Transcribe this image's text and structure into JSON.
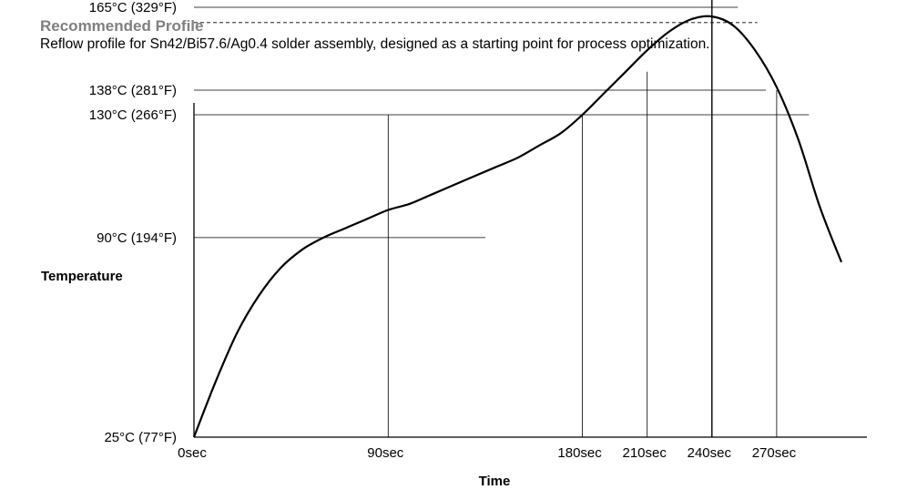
{
  "header": {
    "title": "Recommended Profile",
    "subtitle": "Reflow profile for Sn42/Bi57.6/Ag0.4 solder assembly, designed as a starting point for process optimization."
  },
  "chart_data": {
    "type": "line",
    "xlabel": "Time",
    "ylabel": "Temperature",
    "x_ticks": [
      {
        "value": 0,
        "label": "0sec"
      },
      {
        "value": 90,
        "label": "90sec"
      },
      {
        "value": 180,
        "label": "180sec"
      },
      {
        "value": 210,
        "label": "210sec"
      },
      {
        "value": 240,
        "label": "240sec"
      },
      {
        "value": 270,
        "label": "270sec"
      }
    ],
    "y_ticks": [
      {
        "value": 25,
        "label": "25°C (77°F)"
      },
      {
        "value": 90,
        "label": "90°C (194°F)"
      },
      {
        "value": 130,
        "label": "130°C (266°F)"
      },
      {
        "value": 138,
        "label": "138°C (281°F)"
      },
      {
        "value": 165,
        "label": "165°C (329°F)"
      }
    ],
    "dashed_line_y": 160,
    "series": [
      {
        "points": [
          [
            0,
            25
          ],
          [
            10,
            43
          ],
          [
            20,
            59
          ],
          [
            30,
            71
          ],
          [
            40,
            80
          ],
          [
            50,
            86
          ],
          [
            60,
            90
          ],
          [
            70,
            93
          ],
          [
            80,
            96
          ],
          [
            90,
            99
          ],
          [
            100,
            101
          ],
          [
            110,
            104
          ],
          [
            120,
            107
          ],
          [
            130,
            110
          ],
          [
            140,
            113
          ],
          [
            150,
            116
          ],
          [
            160,
            120
          ],
          [
            170,
            124
          ],
          [
            180,
            130
          ],
          [
            190,
            137
          ],
          [
            200,
            144
          ],
          [
            210,
            151
          ],
          [
            220,
            157
          ],
          [
            230,
            161
          ],
          [
            240,
            162
          ],
          [
            250,
            159
          ],
          [
            260,
            151
          ],
          [
            270,
            139
          ],
          [
            280,
            122
          ],
          [
            290,
            100
          ],
          [
            300,
            82
          ]
        ]
      }
    ],
    "grid_lines": [
      {
        "orientation": "h",
        "y": 165,
        "x_end": 252
      },
      {
        "orientation": "h",
        "y": 138,
        "x_end": 265
      },
      {
        "orientation": "h",
        "y": 130,
        "x_end": 285
      },
      {
        "orientation": "h",
        "y": 90,
        "x_end": 135
      },
      {
        "orientation": "v",
        "x": 90,
        "y_end": 130
      },
      {
        "orientation": "v",
        "x": 180,
        "y_end": 130
      },
      {
        "orientation": "v",
        "x": 210,
        "y_end": 144
      },
      {
        "orientation": "v",
        "x": 240,
        "y_end": 168
      },
      {
        "orientation": "v",
        "x": 270,
        "y_end": 138
      }
    ],
    "xlim": [
      0,
      305
    ],
    "ylim": [
      25,
      168
    ]
  }
}
